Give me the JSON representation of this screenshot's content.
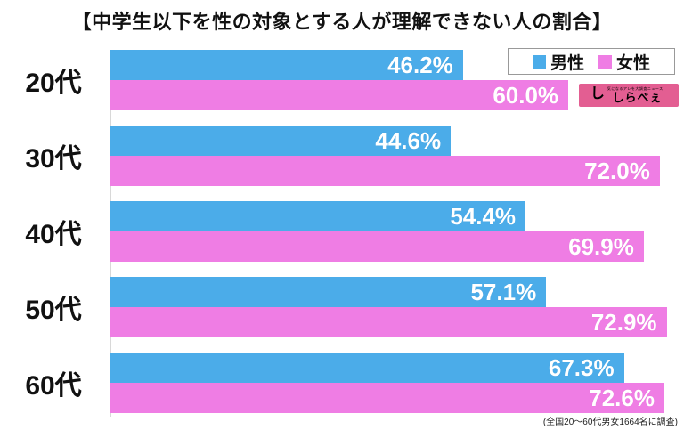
{
  "title": "【中学生以下を性の対象とする人が理解できない人の割合】",
  "footnote": "(全国20～60代男女1664名に調査)",
  "legend": {
    "male": "男性",
    "female": "女性"
  },
  "logo": {
    "tagline": "気になるアレを大調査ニュース！",
    "name": "しらべぇ"
  },
  "colors": {
    "male": "#4BACE9",
    "female": "#EF7DE4",
    "logo_bg": "#E35E92",
    "value_text": "#FFFFFF"
  },
  "chart_data": {
    "type": "bar",
    "orientation": "horizontal",
    "title": "【中学生以下を性の対象とする人が理解できない人の割合】",
    "categories": [
      "20代",
      "30代",
      "40代",
      "50代",
      "60代"
    ],
    "series": [
      {
        "name": "男性",
        "color_key": "male",
        "values": [
          46.2,
          44.6,
          54.4,
          57.1,
          67.3
        ]
      },
      {
        "name": "女性",
        "color_key": "female",
        "values": [
          60.0,
          72.0,
          69.9,
          72.9,
          72.6
        ]
      }
    ],
    "value_suffix": "%",
    "xlim": [
      0,
      74
    ],
    "grid": false,
    "value_labels": "inside-end",
    "legend_position": "top-right",
    "annotation": "(全国20～60代男女1664名に調査)"
  }
}
